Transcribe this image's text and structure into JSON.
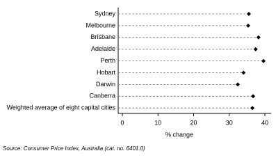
{
  "chart_data": {
    "type": "dot",
    "categories": [
      "Sydney",
      "Melbourne",
      "Brisbane",
      "Adelaide",
      "Perth",
      "Hobart",
      "Darwin",
      "Canberra",
      "Weighted average of eight capital cities"
    ],
    "values": [
      35.5,
      35.3,
      38.2,
      37.4,
      39.6,
      34.0,
      32.4,
      36.7,
      36.5
    ],
    "color": "#000000",
    "xlabel": "% change",
    "xlim": [
      0,
      40
    ],
    "xticks": [
      0,
      10,
      20,
      30,
      40
    ],
    "source": "Source: Consumer Price Index, Australia (cat. no. 6401.0)"
  }
}
